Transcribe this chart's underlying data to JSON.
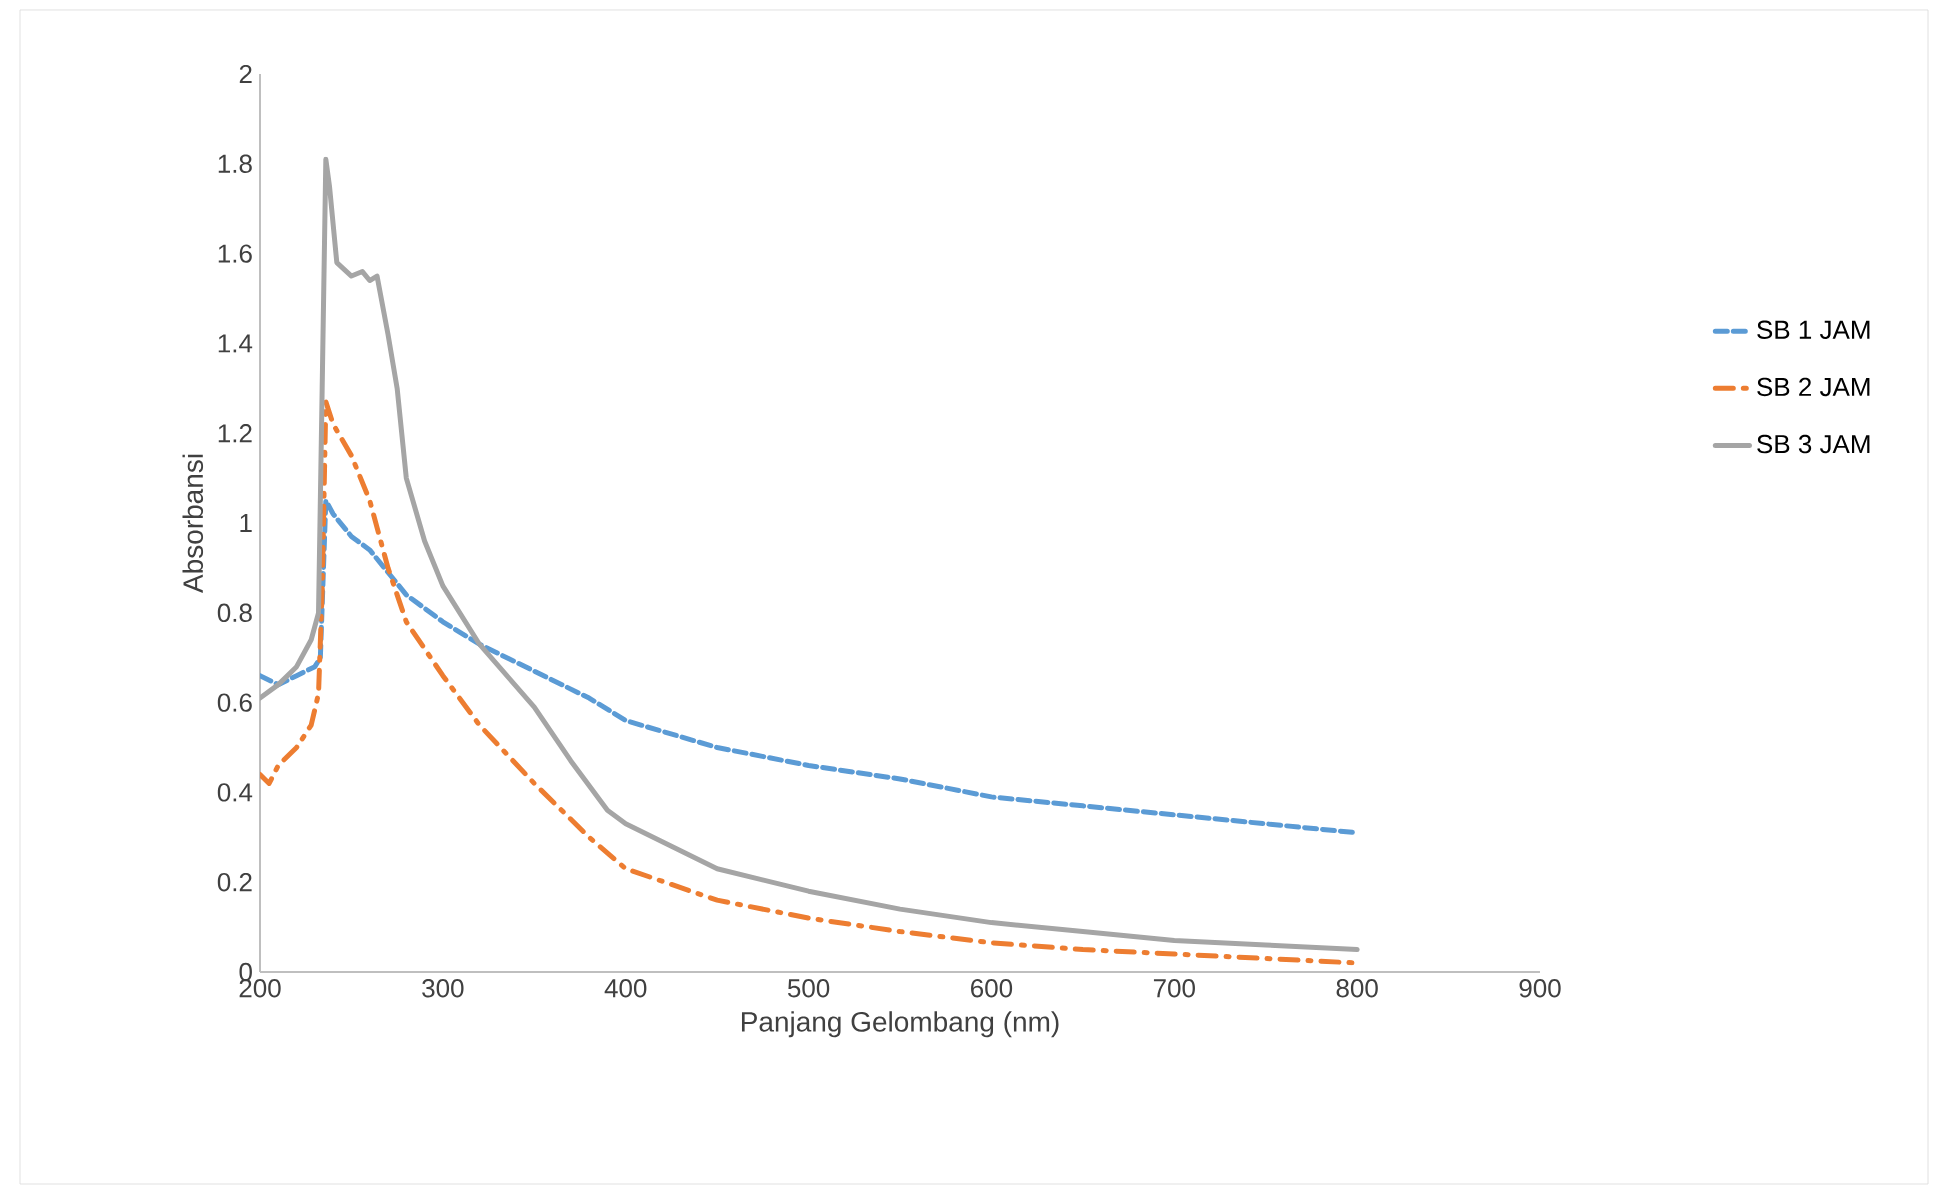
{
  "chart_data": {
    "type": "line",
    "xlabel": "Panjang Gelombang (nm)",
    "ylabel": "Absorbansi",
    "xlim": [
      200,
      900
    ],
    "xticks": [
      200,
      300,
      400,
      500,
      600,
      700,
      800,
      900
    ],
    "ylim": [
      0,
      2
    ],
    "yticks": [
      0,
      0.2,
      0.4,
      0.6,
      0.8,
      1,
      1.2,
      1.4,
      1.6,
      1.8,
      2
    ],
    "grid": false,
    "legend": "right",
    "marker": "none",
    "series": [
      {
        "name": "SB 1 JAM",
        "color": "#5b9bd5",
        "line_style": "dashed",
        "x": [
          200,
          210,
          220,
          230,
          233,
          236,
          240,
          250,
          260,
          270,
          280,
          300,
          320,
          350,
          380,
          400,
          450,
          500,
          550,
          600,
          650,
          700,
          750,
          800
        ],
        "values": [
          0.66,
          0.64,
          0.66,
          0.68,
          0.7,
          1.05,
          1.02,
          0.97,
          0.94,
          0.89,
          0.84,
          0.78,
          0.73,
          0.67,
          0.61,
          0.56,
          0.5,
          0.46,
          0.43,
          0.39,
          0.37,
          0.35,
          0.33,
          0.31
        ]
      },
      {
        "name": "SB 2 JAM",
        "color": "#ed7d31",
        "line_style": "dashdot",
        "x": [
          200,
          205,
          210,
          220,
          228,
          232,
          234,
          236,
          240,
          250,
          260,
          270,
          280,
          300,
          320,
          350,
          380,
          400,
          450,
          500,
          550,
          600,
          650,
          700,
          750,
          800
        ],
        "values": [
          0.44,
          0.42,
          0.46,
          0.5,
          0.55,
          0.62,
          0.85,
          1.27,
          1.22,
          1.15,
          1.05,
          0.9,
          0.78,
          0.66,
          0.55,
          0.42,
          0.3,
          0.23,
          0.16,
          0.12,
          0.09,
          0.065,
          0.05,
          0.04,
          0.03,
          0.02
        ]
      },
      {
        "name": "SB 3 JAM",
        "color": "#a5a5a5",
        "line_style": "solid",
        "x": [
          200,
          210,
          220,
          228,
          232,
          234,
          236,
          238,
          242,
          250,
          256,
          260,
          264,
          270,
          275,
          280,
          290,
          300,
          320,
          350,
          370,
          390,
          400,
          450,
          500,
          550,
          600,
          650,
          700,
          750,
          800
        ],
        "values": [
          0.61,
          0.64,
          0.68,
          0.74,
          0.8,
          1.3,
          1.81,
          1.75,
          1.58,
          1.55,
          1.56,
          1.54,
          1.55,
          1.42,
          1.3,
          1.1,
          0.96,
          0.86,
          0.73,
          0.59,
          0.47,
          0.36,
          0.33,
          0.23,
          0.18,
          0.14,
          0.11,
          0.09,
          0.07,
          0.06,
          0.05
        ]
      }
    ]
  }
}
